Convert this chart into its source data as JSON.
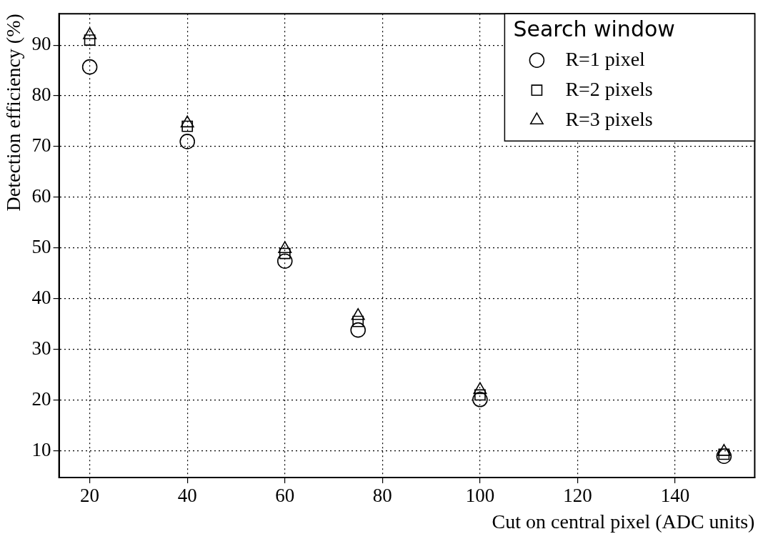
{
  "chart_data": {
    "type": "scatter",
    "xlabel": "Cut on central pixel (ADC units)",
    "ylabel": "Detection efficiency (%)",
    "legend_title": "Search window",
    "legend": "top right",
    "grid": true,
    "xlim": [
      13.7,
      156.3
    ],
    "xticks": [
      20,
      40,
      60,
      80,
      100,
      120,
      140
    ],
    "ylim": [
      4.7,
      96.2
    ],
    "yticks": [
      10,
      20,
      30,
      40,
      50,
      60,
      70,
      80,
      90
    ],
    "series": [
      {
        "name": "R=1 pixel",
        "color": "#000000",
        "marker": "circle",
        "x": [
          20,
          40,
          60,
          75,
          100,
          150
        ],
        "values": [
          85.7,
          71,
          47.4,
          33.8,
          20.1,
          8.9
        ]
      },
      {
        "name": "R=2 pixels",
        "color": "#000000",
        "marker": "square",
        "x": [
          20,
          40,
          60,
          75,
          100,
          150
        ],
        "values": [
          91,
          74,
          48.9,
          35.5,
          21,
          9.3
        ]
      },
      {
        "name": "R=3 pixels",
        "color": "#000000",
        "marker": "triangle",
        "x": [
          20,
          40,
          60,
          75,
          100,
          150
        ],
        "values": [
          92,
          74.6,
          49.8,
          36.6,
          22,
          9.8
        ]
      }
    ]
  }
}
